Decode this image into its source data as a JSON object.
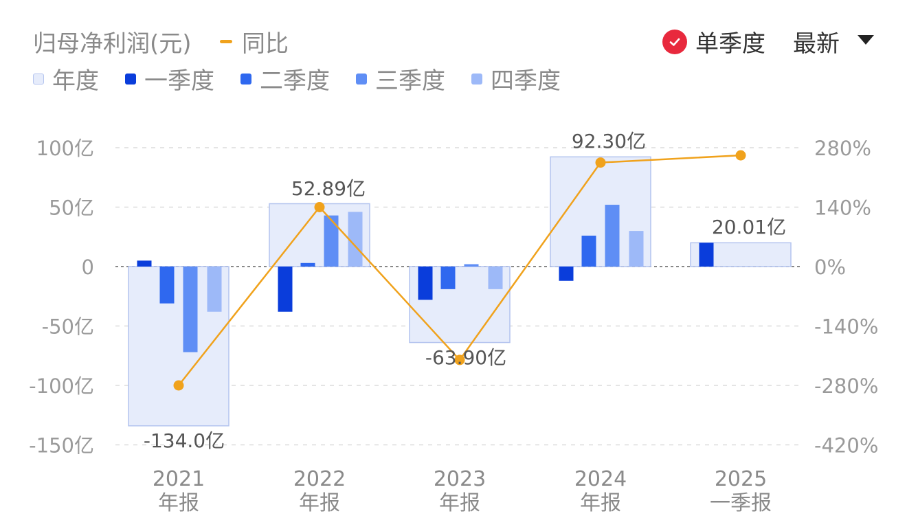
{
  "header": {
    "title": "归母净利润(元)",
    "yoy_label": "同比",
    "single_quarter_label": "单季度",
    "latest_label": "最新"
  },
  "colors": {
    "annual": "#e6ecfb",
    "annual_border": "#b4c4ef",
    "q1": "#0a3ddb",
    "q2": "#2f68ef",
    "q3": "#5f8ef5",
    "q4": "#9db9f8",
    "yoy": "#f0a21c",
    "check": "#e8293d"
  },
  "icons": {
    "check": "check-circle-icon",
    "dropdown": "caret-down-icon"
  },
  "chart_data": {
    "type": "bar",
    "categories": [
      {
        "year": "2021",
        "period": "年报"
      },
      {
        "year": "2022",
        "period": "年报"
      },
      {
        "year": "2023",
        "period": "年报"
      },
      {
        "year": "2024",
        "period": "年报"
      },
      {
        "year": "2025",
        "period": "一季报"
      }
    ],
    "legend": [
      "年度",
      "一季度",
      "二季度",
      "三季度",
      "四季度"
    ],
    "annual": [
      -134.0,
      52.89,
      -63.9,
      92.3,
      20.01
    ],
    "annual_labels": [
      "-134.0亿",
      "52.89亿",
      "-63.90亿",
      "92.30亿",
      "20.01亿"
    ],
    "quarters": [
      [
        5,
        -31,
        -72,
        -38
      ],
      [
        -38,
        3,
        43,
        46
      ],
      [
        -28,
        -19,
        2,
        -19
      ],
      [
        -12,
        26,
        52,
        30
      ],
      [
        20,
        null,
        null,
        null
      ]
    ],
    "yoy_series_name": "同比",
    "yoy_percent": [
      -280,
      140,
      -220,
      245,
      262
    ],
    "left_axis": {
      "ticks": [
        100,
        50,
        0,
        -50,
        -100,
        -150
      ],
      "labels": [
        "100亿",
        "50亿",
        "0",
        "-50亿",
        "-100亿",
        "-150亿"
      ],
      "ylim": [
        -150,
        100
      ]
    },
    "right_axis": {
      "ticks": [
        280,
        140,
        0,
        -140,
        -280,
        -420
      ],
      "labels": [
        "280%",
        "140%",
        "0%",
        "-140%",
        "-280%",
        "-420%"
      ],
      "ylim": [
        -420,
        280
      ]
    },
    "grid": true
  }
}
